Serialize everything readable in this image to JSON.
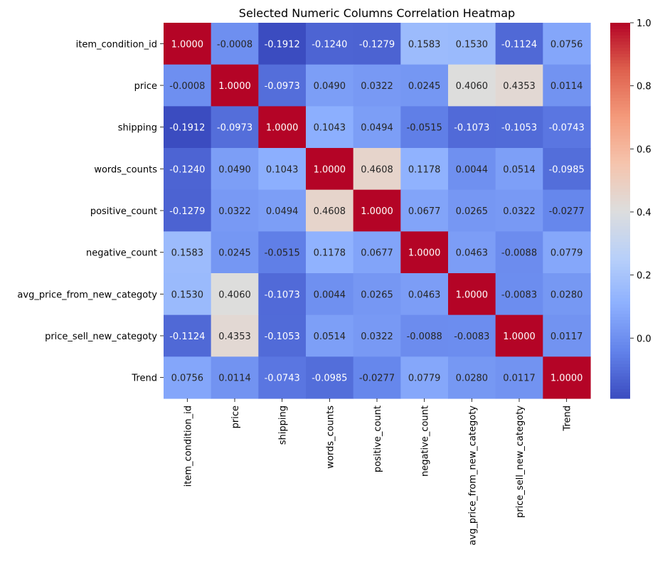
{
  "chart_data": {
    "type": "heatmap",
    "title": "Selected Numeric Columns Correlation Heatmap",
    "xlabel": "",
    "ylabel": "",
    "labels": [
      "item_condition_id",
      "price",
      "shipping",
      "words_counts",
      "positive_count",
      "negative_count",
      "avg_price_from_new_categoty",
      "price_sell_new_categoty",
      "Trend"
    ],
    "cell_text": [
      [
        "1.0000",
        "-0.0008",
        "-0.1912",
        "-0.1240",
        "-0.1279",
        "0.1583",
        "0.1530",
        "-0.1124",
        "0.0756"
      ],
      [
        "-0.0008",
        "1.0000",
        "-0.0973",
        "0.0490",
        "0.0322",
        "0.0245",
        "0.4060",
        "0.4353",
        "0.0114"
      ],
      [
        "-0.1912",
        "-0.0973",
        "1.0000",
        "0.1043",
        "0.0494",
        "-0.0515",
        "-0.1073",
        "-0.1053",
        "-0.0743"
      ],
      [
        "-0.1240",
        "0.0490",
        "0.1043",
        "1.0000",
        "0.4608",
        "0.1178",
        "0.0044",
        "0.0514",
        "-0.0985"
      ],
      [
        "-0.1279",
        "0.0322",
        "0.0494",
        "0.4608",
        "1.0000",
        "0.0677",
        "0.0265",
        "0.0322",
        "-0.0277"
      ],
      [
        "0.1583",
        "0.0245",
        "-0.0515",
        "0.1178",
        "0.0677",
        "1.0000",
        "0.0463",
        "-0.0088",
        "0.0779"
      ],
      [
        "0.1530",
        "0.4060",
        "-0.1073",
        "0.0044",
        "0.0265",
        "0.0463",
        "1.0000",
        "-0.0083",
        "0.0280"
      ],
      [
        "-0.1124",
        "0.4353",
        "-0.1053",
        "0.0514",
        "0.0322",
        "-0.0088",
        "-0.0083",
        "1.0000",
        "0.0117"
      ],
      [
        "0.0756",
        "0.0114",
        "-0.0743",
        "-0.0985",
        "-0.0277",
        "0.0779",
        "0.0280",
        "0.0117",
        "1.0000"
      ]
    ],
    "values": [
      [
        1.0,
        -0.0008,
        -0.1912,
        -0.124,
        -0.1279,
        0.1583,
        0.153,
        -0.1124,
        0.0756
      ],
      [
        -0.0008,
        1.0,
        -0.0973,
        0.049,
        0.0322,
        0.0245,
        0.406,
        0.4353,
        0.0114
      ],
      [
        -0.1912,
        -0.0973,
        1.0,
        0.1043,
        0.0494,
        -0.0515,
        -0.1073,
        -0.1053,
        -0.0743
      ],
      [
        -0.124,
        0.049,
        0.1043,
        1.0,
        0.4608,
        0.1178,
        0.0044,
        0.0514,
        -0.0985
      ],
      [
        -0.1279,
        0.0322,
        0.0494,
        0.4608,
        1.0,
        0.0677,
        0.0265,
        0.0322,
        -0.0277
      ],
      [
        0.1583,
        0.0245,
        -0.0515,
        0.1178,
        0.0677,
        1.0,
        0.0463,
        -0.0088,
        0.0779
      ],
      [
        0.153,
        0.406,
        -0.1073,
        0.0044,
        0.0265,
        0.0463,
        1.0,
        -0.0083,
        0.028
      ],
      [
        -0.1124,
        0.4353,
        -0.1053,
        0.0514,
        0.0322,
        -0.0088,
        -0.0083,
        1.0,
        0.0117
      ],
      [
        0.0756,
        0.0114,
        -0.0743,
        -0.0985,
        -0.0277,
        0.0779,
        0.028,
        0.0117,
        1.0
      ]
    ],
    "colormap": "coolwarm",
    "vmin": -0.1912,
    "vmax": 1.0,
    "colorbar_ticks": [
      0.0,
      0.2,
      0.4,
      0.6,
      0.8,
      1.0
    ],
    "colorbar_tick_labels": [
      "0.0",
      "0.2",
      "0.4",
      "0.6",
      "0.8",
      "1.0"
    ],
    "colorbar_placement": "right",
    "grid": false
  }
}
